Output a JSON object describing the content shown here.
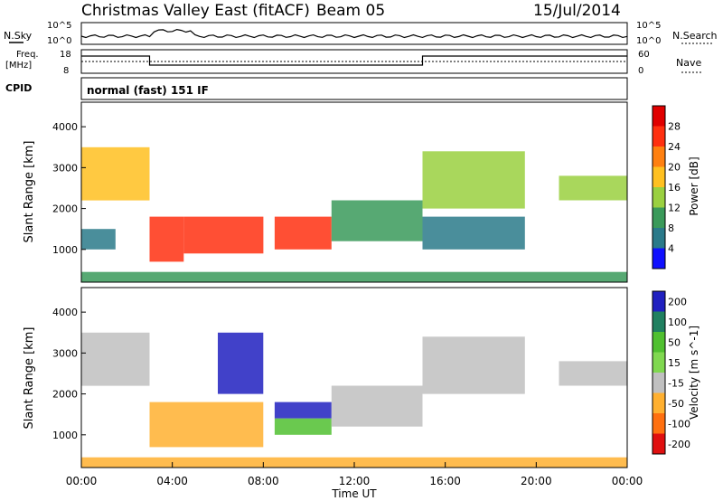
{
  "header": {
    "title": "Christmas Valley East (fitACF)",
    "beam": "Beam 05",
    "date": "15/Jul/2014"
  },
  "status_panels": {
    "nsky_label": "N.Sky",
    "nsearch_label": "N.Search",
    "noise_ticks_left": [
      "10^5",
      "10^0"
    ],
    "noise_ticks_right": [
      "10^5",
      "10^0"
    ],
    "freq_label_1": "Freq.",
    "freq_label_2": "[MHz]",
    "freq_ticks": [
      "18",
      "8"
    ],
    "nave_label": "Nave",
    "nave_ticks": [
      "60",
      "0"
    ],
    "cpid_label": "CPID",
    "cpid_value": "normal (fast) 151 IF"
  },
  "chart_data": [
    {
      "type": "heatmap",
      "name": "power",
      "ylabel": "Slant Range [km]",
      "yticks": [
        "1000",
        "2000",
        "3000",
        "4000"
      ],
      "ylim": [
        200,
        4600
      ],
      "colorbar_label": "Power [dB]",
      "colorbar_ticks": [
        "4",
        "8",
        "12",
        "16",
        "20",
        "24",
        "28"
      ],
      "colors": [
        "#1010ff",
        "#2a7a8a",
        "#3a9a5a",
        "#9ad040",
        "#ffc020",
        "#ff8010",
        "#ff3010",
        "#e00000"
      ],
      "regions": [
        {
          "t0": 0.0,
          "t1": 3.0,
          "r0": 2200,
          "r1": 3500,
          "level": 4
        },
        {
          "t0": 0.0,
          "t1": 1.5,
          "r0": 1000,
          "r1": 1500,
          "level": 1
        },
        {
          "t0": 3.0,
          "t1": 4.5,
          "r0": 700,
          "r1": 1800,
          "level": 6
        },
        {
          "t0": 4.5,
          "t1": 8.0,
          "r0": 900,
          "r1": 1800,
          "level": 6
        },
        {
          "t0": 8.5,
          "t1": 11.0,
          "r0": 1000,
          "r1": 1800,
          "level": 6
        },
        {
          "t0": 11.0,
          "t1": 15.0,
          "r0": 1200,
          "r1": 2200,
          "level": 2
        },
        {
          "t0": 15.0,
          "t1": 19.5,
          "r0": 2000,
          "r1": 3400,
          "level": 3
        },
        {
          "t0": 15.0,
          "t1": 19.5,
          "r0": 1000,
          "r1": 1800,
          "level": 1
        },
        {
          "t0": 21.0,
          "t1": 24.0,
          "r0": 2200,
          "r1": 2800,
          "level": 3
        },
        {
          "t0": 0.0,
          "t1": 24.0,
          "r0": 200,
          "r1": 450,
          "level": 2
        }
      ]
    },
    {
      "type": "heatmap",
      "name": "velocity",
      "ylabel": "Slant Range [km]",
      "yticks": [
        "1000",
        "2000",
        "3000",
        "4000"
      ],
      "ylim": [
        200,
        4600
      ],
      "colorbar_label": "Velocity [m s^-1]",
      "colorbar_ticks": [
        "200",
        "100",
        "50",
        "15",
        "-15",
        "-50",
        "-100",
        "-200"
      ],
      "colors": [
        "#2020c0",
        "#208060",
        "#50c030",
        "#80d850",
        "#c0c0c0",
        "#ffb030",
        "#ff7010",
        "#e01010"
      ],
      "regions": [
        {
          "t0": 0.0,
          "t1": 3.0,
          "r0": 2200,
          "r1": 3500,
          "level": 4
        },
        {
          "t0": 3.0,
          "t1": 8.0,
          "r0": 700,
          "r1": 1800,
          "level": 5
        },
        {
          "t0": 6.0,
          "t1": 8.0,
          "r0": 2000,
          "r1": 3500,
          "level": 0
        },
        {
          "t0": 8.5,
          "t1": 11.0,
          "r0": 1400,
          "r1": 1800,
          "level": 0
        },
        {
          "t0": 8.5,
          "t1": 11.0,
          "r0": 1000,
          "r1": 1400,
          "level": 2
        },
        {
          "t0": 11.0,
          "t1": 15.0,
          "r0": 1200,
          "r1": 2200,
          "level": 4
        },
        {
          "t0": 15.0,
          "t1": 19.5,
          "r0": 2000,
          "r1": 3400,
          "level": 4
        },
        {
          "t0": 21.0,
          "t1": 24.0,
          "r0": 2200,
          "r1": 2800,
          "level": 4
        },
        {
          "t0": 0.0,
          "t1": 24.0,
          "r0": 200,
          "r1": 450,
          "level": 5
        }
      ]
    }
  ],
  "xaxis": {
    "label": "Time UT",
    "ticks": [
      "00:00",
      "04:00",
      "08:00",
      "12:00",
      "16:00",
      "20:00",
      "00:00"
    ]
  }
}
